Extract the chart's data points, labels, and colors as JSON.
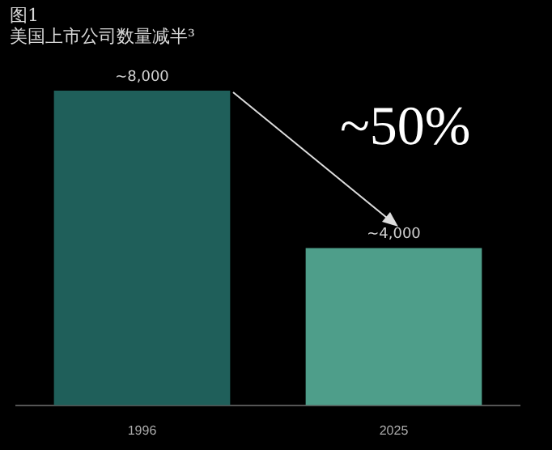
{
  "chart_data": {
    "type": "bar",
    "title": "图1",
    "subtitle": "美国上市公司数量减半³",
    "categories": [
      "1996",
      "2025"
    ],
    "values": [
      8000,
      4000
    ],
    "value_labels": [
      "~8,000",
      "~4,000"
    ],
    "colors": [
      "#1f5f5a",
      "#4e9e8a"
    ],
    "annotations": [
      "~50%"
    ],
    "grid": false,
    "legend": false
  }
}
